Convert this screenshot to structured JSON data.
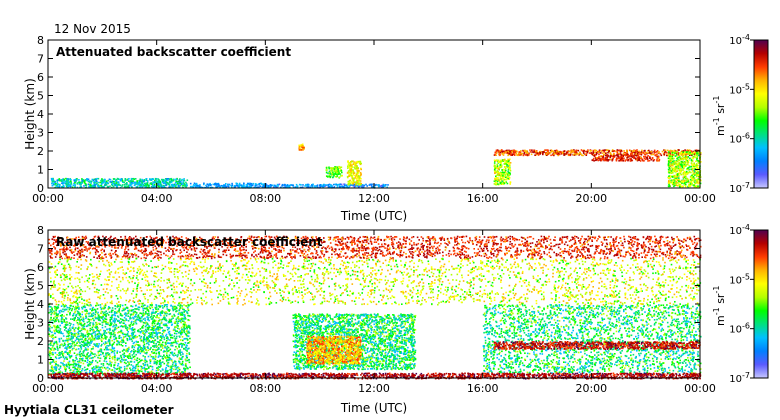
{
  "date": "12 Nov 2015",
  "footer": "Hyytiala CL31 ceilometer",
  "colors": {
    "scale": [
      "#c8c8ff",
      "#5a5aff",
      "#0080ff",
      "#00c0ff",
      "#00e080",
      "#00ff00",
      "#b4ff00",
      "#ffff00",
      "#ffb400",
      "#ff3c00",
      "#b40000",
      "#500050"
    ]
  },
  "chart_data": [
    {
      "type": "heatmap",
      "title": "Attenuated backscatter coefficient",
      "xlabel": "Time (UTC)",
      "ylabel": "Height (km)",
      "xlim": [
        0,
        24
      ],
      "ylim": [
        0,
        8
      ],
      "x_ticks": [
        "00:00",
        "04:00",
        "08:00",
        "12:00",
        "16:00",
        "20:00",
        "00:00"
      ],
      "y_ticks": [
        "0",
        "1",
        "2",
        "3",
        "4",
        "5",
        "6",
        "7",
        "8"
      ],
      "colorbar": {
        "unit": "m-1 sr-1",
        "unit_main": "m",
        "unit_exp1": "-1",
        "unit_mid": " sr",
        "unit_exp2": "-1",
        "scale": "log",
        "range": [
          1e-07,
          0.0001
        ],
        "ticks": [
          {
            "base": "10",
            "exp": "-4",
            "value": 0.0001
          },
          {
            "base": "10",
            "exp": "-5",
            "value": 1e-05
          },
          {
            "base": "10",
            "exp": "-6",
            "value": 1e-06
          },
          {
            "base": "10",
            "exp": "-7",
            "value": 1e-07
          }
        ]
      },
      "features": [
        {
          "time": [
            0.1,
            5.1
          ],
          "height": [
            0.05,
            0.55
          ],
          "level": [
            0.2,
            0.45
          ]
        },
        {
          "time": [
            5.2,
            8.0
          ],
          "height": [
            0.05,
            0.3
          ],
          "level": [
            0.15,
            0.3
          ]
        },
        {
          "time": [
            8.0,
            12.5
          ],
          "height": [
            0.05,
            0.25
          ],
          "level": [
            0.12,
            0.28
          ]
        },
        {
          "time": [
            9.2,
            9.4
          ],
          "height": [
            2.1,
            2.4
          ],
          "level": [
            0.6,
            0.8
          ]
        },
        {
          "time": [
            10.2,
            10.8
          ],
          "height": [
            0.6,
            1.2
          ],
          "level": [
            0.4,
            0.6
          ]
        },
        {
          "time": [
            11.0,
            11.5
          ],
          "height": [
            0.2,
            1.5
          ],
          "level": [
            0.5,
            0.75
          ]
        },
        {
          "time": [
            16.4,
            17.0
          ],
          "height": [
            0.2,
            1.6
          ],
          "level": [
            0.4,
            0.7
          ]
        },
        {
          "time": [
            16.4,
            24.0
          ],
          "height": [
            1.8,
            2.1
          ],
          "level": [
            0.7,
            0.95
          ]
        },
        {
          "time": [
            20.0,
            22.5
          ],
          "height": [
            1.5,
            1.8
          ],
          "level": [
            0.75,
            0.95
          ]
        },
        {
          "time": [
            22.8,
            24.0
          ],
          "height": [
            0.1,
            2.0
          ],
          "level": [
            0.4,
            0.7
          ]
        }
      ]
    },
    {
      "type": "heatmap",
      "title": "Raw attenuated backscatter coefficient",
      "xlabel": "Time (UTC)",
      "ylabel": "Height (km)",
      "xlim": [
        0,
        24
      ],
      "ylim": [
        0,
        8
      ],
      "x_ticks": [
        "00:00",
        "04:00",
        "08:00",
        "12:00",
        "16:00",
        "20:00",
        "00:00"
      ],
      "y_ticks": [
        "0",
        "1",
        "2",
        "3",
        "4",
        "5",
        "6",
        "7",
        "8"
      ],
      "colorbar": {
        "unit": "m-1 sr-1",
        "unit_main": "m",
        "unit_exp1": "-1",
        "unit_mid": " sr",
        "unit_exp2": "-1",
        "scale": "log",
        "range": [
          1e-07,
          0.0001
        ],
        "ticks": [
          {
            "base": "10",
            "exp": "-4",
            "value": 0.0001
          },
          {
            "base": "10",
            "exp": "-5",
            "value": 1e-05
          },
          {
            "base": "10",
            "exp": "-6",
            "value": 1e-06
          },
          {
            "base": "10",
            "exp": "-7",
            "value": 1e-07
          }
        ]
      },
      "features": [
        {
          "time": [
            0,
            24
          ],
          "height": [
            6.5,
            7.7
          ],
          "level": [
            0.75,
            0.95
          ]
        },
        {
          "time": [
            0,
            24
          ],
          "height": [
            4.0,
            6.5
          ],
          "level": [
            0.45,
            0.75
          ]
        },
        {
          "time": [
            0,
            5.2
          ],
          "height": [
            0.2,
            4.0
          ],
          "level": [
            0.25,
            0.55
          ]
        },
        {
          "time": [
            9.0,
            13.5
          ],
          "height": [
            0.5,
            3.5
          ],
          "level": [
            0.25,
            0.55
          ]
        },
        {
          "time": [
            16.0,
            24.0
          ],
          "height": [
            0.3,
            4.0
          ],
          "level": [
            0.25,
            0.55
          ]
        },
        {
          "time": [
            9.5,
            11.5
          ],
          "height": [
            0.8,
            2.3
          ],
          "level": [
            0.6,
            0.85
          ]
        },
        {
          "time": [
            16.4,
            24.0
          ],
          "height": [
            1.6,
            2.0
          ],
          "level": [
            0.8,
            0.98
          ]
        },
        {
          "time": [
            0,
            24
          ],
          "height": [
            0.0,
            0.3
          ],
          "level": [
            0.85,
            0.98
          ]
        }
      ]
    }
  ]
}
